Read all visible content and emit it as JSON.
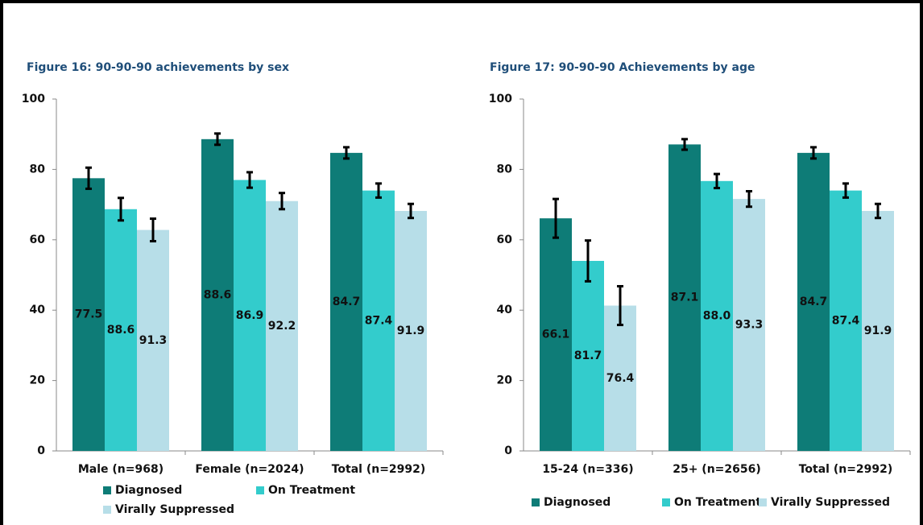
{
  "chart_data": [
    {
      "type": "bar",
      "title": "Figure 16: 90-90-90 achievements by sex",
      "categories": [
        "Male (n=968)",
        "Female (n=2024)",
        "Total (n=2992)"
      ],
      "series": [
        {
          "name": "Diagnosed",
          "color": "#0e7c77",
          "values": [
            77.5,
            88.6,
            84.7
          ],
          "errors": [
            3.0,
            1.6,
            1.6
          ],
          "data_labels": [
            "77.5",
            "88.6",
            "84.7"
          ]
        },
        {
          "name": "On Treatment",
          "color": "#33cccc",
          "values": [
            68.7,
            77.0,
            74.0
          ],
          "errors": [
            3.2,
            2.2,
            2.0
          ],
          "data_labels": [
            "88.6",
            "86.9",
            "87.4"
          ]
        },
        {
          "name": "Virally Suppressed",
          "color": "#b7dee8",
          "values": [
            62.8,
            71.0,
            68.2
          ],
          "errors": [
            3.2,
            2.3,
            2.0
          ],
          "data_labels": [
            "91.3",
            "92.2",
            "91.9"
          ]
        }
      ],
      "ylim": [
        0,
        100
      ],
      "yticks": [
        0,
        20,
        40,
        60,
        80,
        100
      ],
      "grid": false,
      "legend": "bottom"
    },
    {
      "type": "bar",
      "title": "Figure 17: 90-90-90 Achievements by age",
      "categories": [
        "15-24  (n=336)",
        "25+ (n=2656)",
        "Total (n=2992)"
      ],
      "series": [
        {
          "name": "Diagnosed",
          "color": "#0e7c77",
          "values": [
            66.1,
            87.1,
            84.7
          ],
          "errors": [
            5.5,
            1.5,
            1.6
          ],
          "data_labels": [
            "66.1",
            "87.1",
            "84.7"
          ]
        },
        {
          "name": "On Treatment",
          "color": "#33cccc",
          "values": [
            54.0,
            76.7,
            74.0
          ],
          "errors": [
            5.8,
            2.0,
            2.0
          ],
          "data_labels": [
            "81.7",
            "88.0",
            "87.4"
          ]
        },
        {
          "name": "Virally Suppressed",
          "color": "#b7dee8",
          "values": [
            41.3,
            71.6,
            68.2
          ],
          "errors": [
            5.5,
            2.2,
            2.0
          ],
          "data_labels": [
            "76.4",
            "93.3",
            "91.9"
          ]
        }
      ],
      "ylim": [
        0,
        100
      ],
      "yticks": [
        0,
        20,
        40,
        60,
        80,
        100
      ],
      "grid": false,
      "legend": "bottom"
    }
  ]
}
